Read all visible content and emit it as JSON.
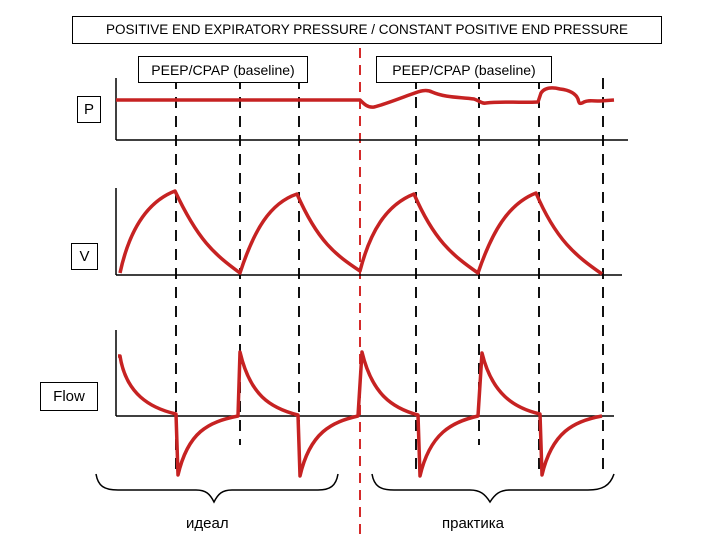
{
  "title": "POSITIVE END EXPIRATORY PRESSURE / CONSTANT POSITIVE END PRESSURE",
  "peep_labels": [
    "PEEP/CPAP (baseline)",
    "PEEP/CPAP (baseline)"
  ],
  "axes": {
    "pressure": "P",
    "volume": "V",
    "flow": "Flow"
  },
  "captions": {
    "ideal": "идеал",
    "practice": "практика"
  },
  "colors": {
    "waveform": "#c62222",
    "divider": "#d42a2a",
    "axis": "#000000"
  }
}
